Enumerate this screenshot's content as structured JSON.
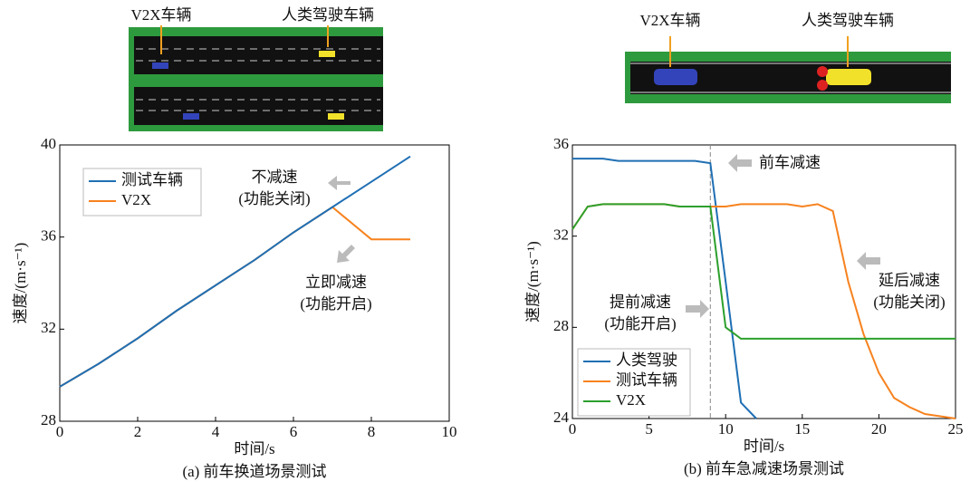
{
  "chart_data": [
    {
      "type": "line",
      "caption": "(a) 前车换道场景测试",
      "xlabel": "时间/s",
      "ylabel": "速度/(m·s⁻¹)",
      "scene_labels": [
        "V2X车辆",
        "人类驾驶车辆"
      ],
      "x": [
        0,
        1,
        2,
        3,
        4,
        5,
        6,
        7,
        8,
        9
      ],
      "series": [
        {
          "name": "测试车辆",
          "color": "#1f6fb4",
          "values": [
            29.5,
            30.5,
            31.6,
            32.8,
            33.9,
            35.0,
            36.2,
            37.3,
            38.4,
            39.5
          ]
        },
        {
          "name": "V2X",
          "color": "#f7821e",
          "values": [
            29.5,
            30.5,
            31.6,
            32.8,
            33.9,
            35.0,
            36.2,
            37.3,
            35.9,
            35.9
          ]
        }
      ],
      "xlim": [
        0,
        10
      ],
      "xticks": [
        0,
        2,
        4,
        6,
        8,
        10
      ],
      "ylim": [
        28,
        40
      ],
      "yticks": [
        28,
        32,
        36,
        40
      ],
      "legend": "upper left",
      "annotations": [
        [
          "不减速",
          "(功能关闭)"
        ],
        [
          "立即减速",
          "(功能开启)"
        ]
      ]
    },
    {
      "type": "line",
      "caption": "(b) 前车急减速场景测试",
      "xlabel": "时间/s",
      "ylabel": "速度/(m·s⁻¹)",
      "scene_labels": [
        "V2X车辆",
        "人类驾驶车辆"
      ],
      "x": [
        0,
        1,
        2,
        3,
        4,
        5,
        6,
        7,
        8,
        9,
        10,
        11,
        12,
        13,
        14,
        15,
        16,
        17,
        18,
        19,
        20,
        21,
        22,
        23,
        24,
        25
      ],
      "series": [
        {
          "name": "人类驾驶",
          "color": "#1f6fb4",
          "values": [
            35.4,
            35.4,
            35.4,
            35.3,
            35.3,
            35.3,
            35.3,
            35.3,
            35.3,
            35.2,
            30.0,
            24.7,
            24.0,
            null,
            null,
            null,
            null,
            null,
            null,
            null,
            null,
            null,
            null,
            null,
            null,
            null
          ]
        },
        {
          "name": "测试车辆",
          "color": "#f7821e",
          "values": [
            32.3,
            33.3,
            33.4,
            33.4,
            33.4,
            33.4,
            33.4,
            33.3,
            33.3,
            33.3,
            33.3,
            33.4,
            33.4,
            33.4,
            33.4,
            33.3,
            33.4,
            33.1,
            30.0,
            27.7,
            26.0,
            24.9,
            24.5,
            24.2,
            24.1,
            24.0
          ]
        },
        {
          "name": "V2X",
          "color": "#2ca02c",
          "values": [
            32.3,
            33.3,
            33.4,
            33.4,
            33.4,
            33.4,
            33.4,
            33.3,
            33.3,
            33.3,
            28.0,
            27.5,
            27.5,
            27.5,
            27.5,
            27.5,
            27.5,
            27.5,
            27.5,
            27.5,
            27.5,
            27.5,
            27.5,
            27.5,
            27.5,
            27.5
          ]
        }
      ],
      "xlim": [
        0,
        25
      ],
      "xticks": [
        0,
        5,
        10,
        15,
        20,
        25
      ],
      "ylim": [
        24,
        36
      ],
      "yticks": [
        24,
        28,
        32,
        36
      ],
      "vline": 9,
      "legend": "lower left",
      "annotations": [
        [
          "前车减速"
        ],
        [
          "提前减速",
          "(功能开启)"
        ],
        [
          "延后减速",
          "(功能关闭)"
        ]
      ]
    }
  ]
}
